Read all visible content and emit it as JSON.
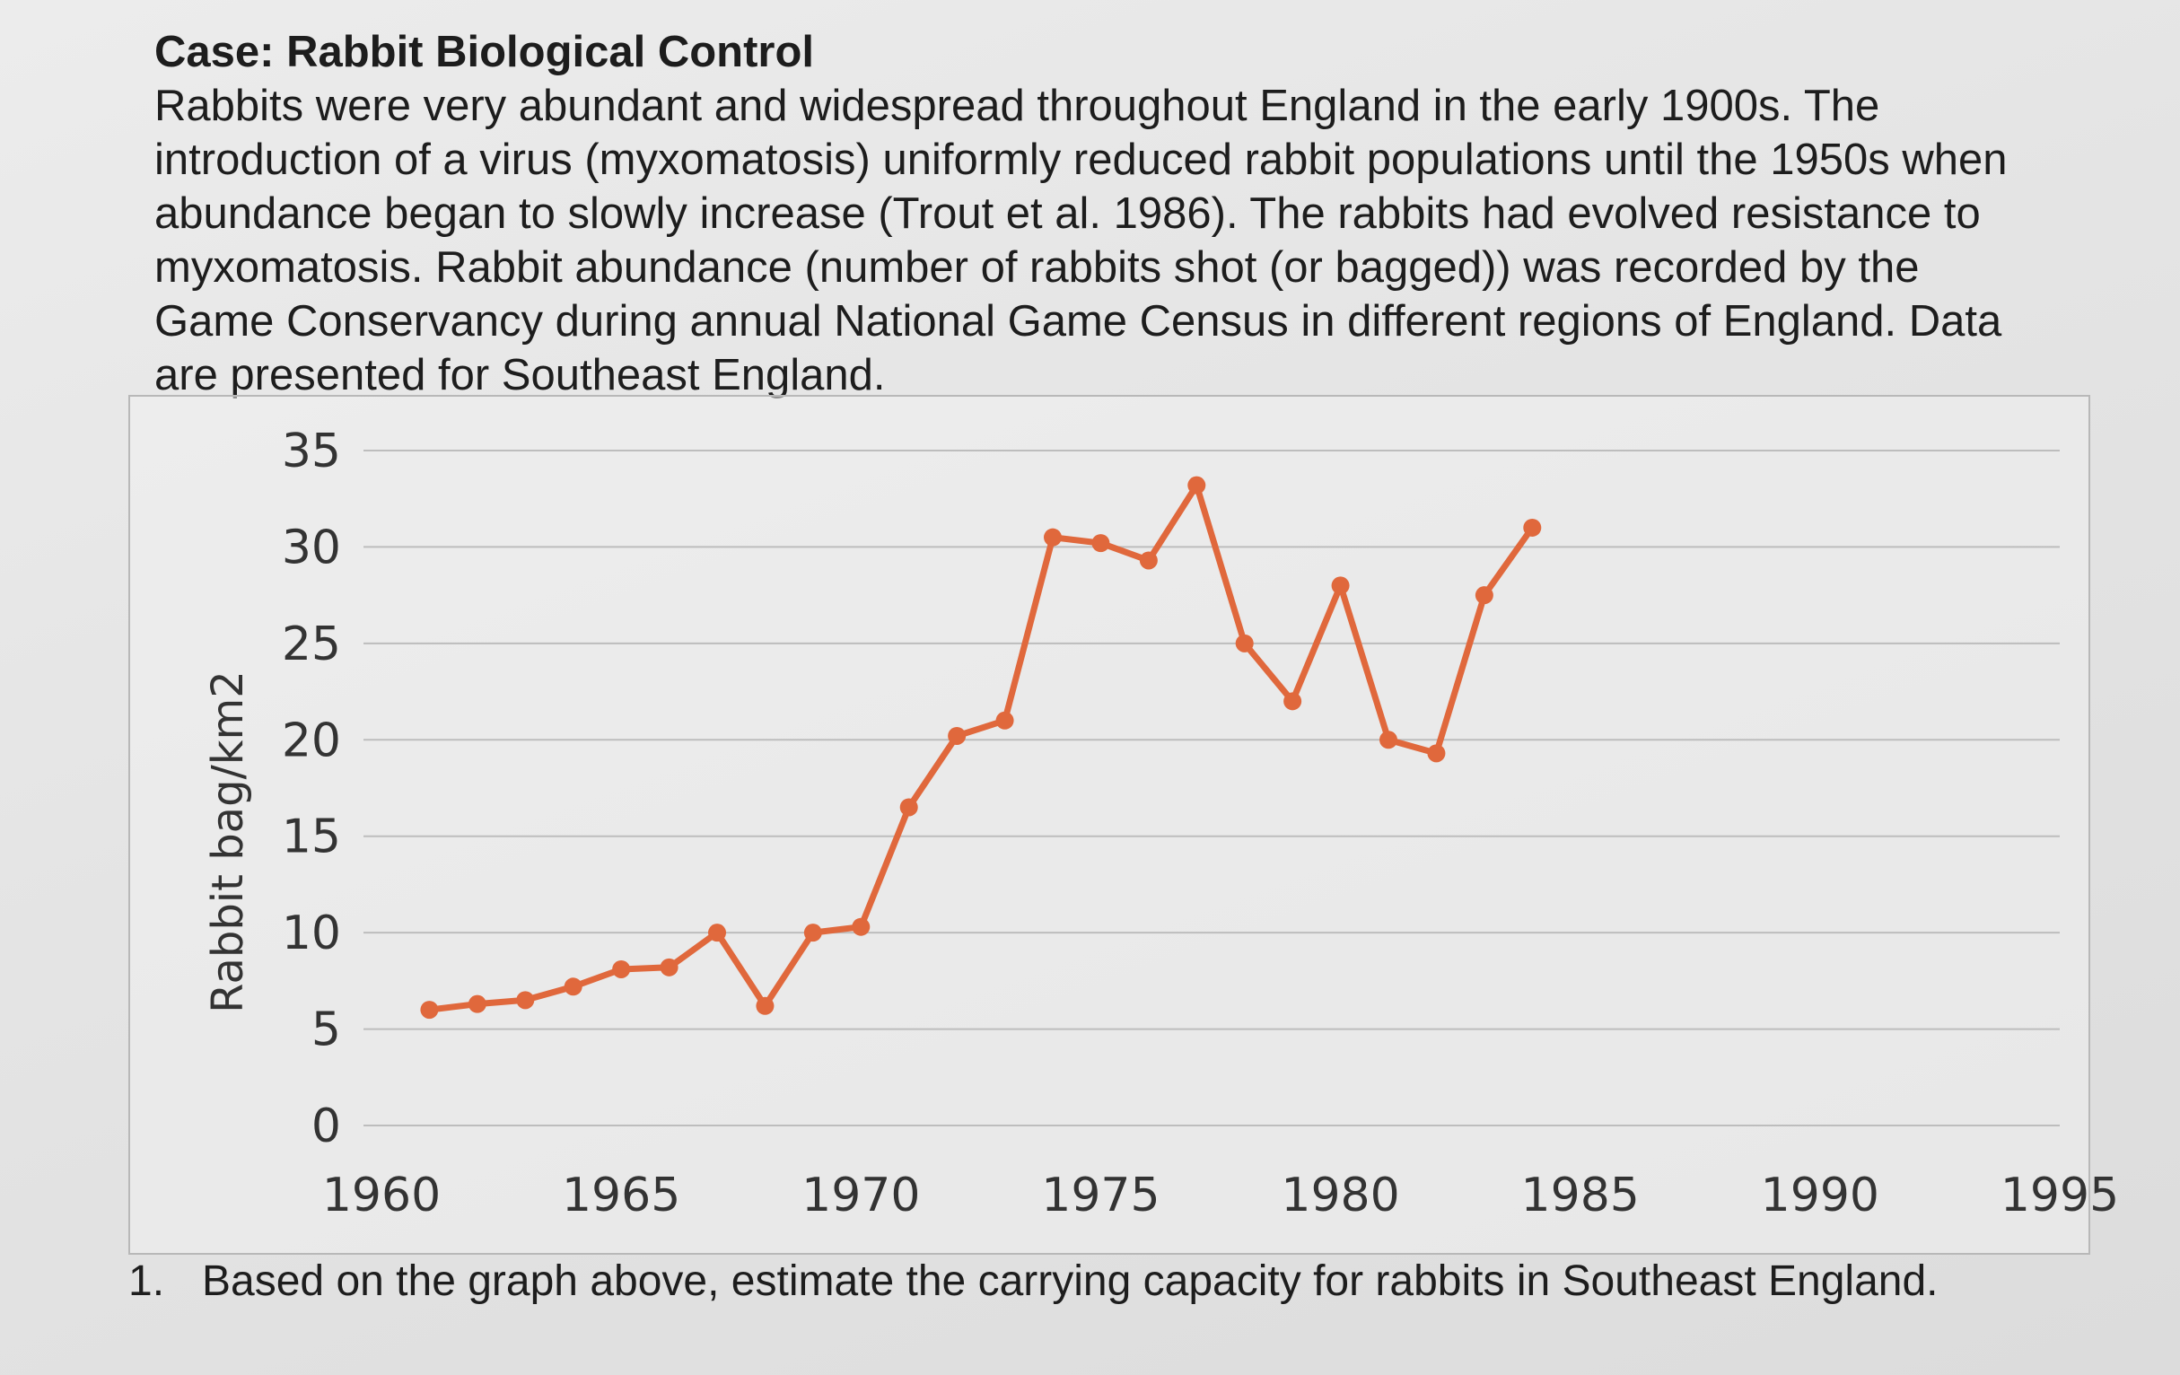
{
  "case": {
    "title": "Case: Rabbit Biological Control",
    "paragraph": "Rabbits were very abundant and widespread throughout England in the early 1900s. The introduction of a virus (myxomatosis) uniformly reduced rabbit populations until the 1950s when abundance began to slowly increase (Trout et al. 1986). The rabbits had evolved resistance to myxomatosis. Rabbit abundance (number of rabbits shot (or bagged)) was recorded by the Game Conservancy during annual National Game Census in different regions of England. Data are presented for Southeast England."
  },
  "chart_data": {
    "type": "line",
    "title": "",
    "xlabel": "",
    "ylabel": "Rabbit bag/km2",
    "xlim": [
      1960,
      1995
    ],
    "ylim": [
      0,
      35
    ],
    "x_ticks": [
      1960,
      1965,
      1970,
      1975,
      1980,
      1985,
      1990,
      1995
    ],
    "y_ticks": [
      0,
      5,
      10,
      15,
      20,
      25,
      30,
      35
    ],
    "grid": "horizontal",
    "series": [
      {
        "name": "",
        "color": "#e0683c",
        "x": [
          1961,
          1962,
          1963,
          1964,
          1965,
          1966,
          1967,
          1968,
          1969,
          1970,
          1971,
          1972,
          1973,
          1974,
          1975,
          1976,
          1977,
          1978,
          1979,
          1980,
          1981,
          1982,
          1983,
          1984
        ],
        "y": [
          6,
          6.3,
          6.5,
          7.2,
          8.1,
          8.2,
          10,
          6.2,
          10,
          10.3,
          16.5,
          20.2,
          21,
          30.5,
          30.2,
          29.3,
          33.2,
          25,
          22,
          28,
          20,
          19.3,
          27.5,
          31
        ]
      }
    ]
  },
  "question": {
    "number": "1.",
    "text": "Based on the graph above, estimate the carrying capacity for rabbits in Southeast England."
  }
}
